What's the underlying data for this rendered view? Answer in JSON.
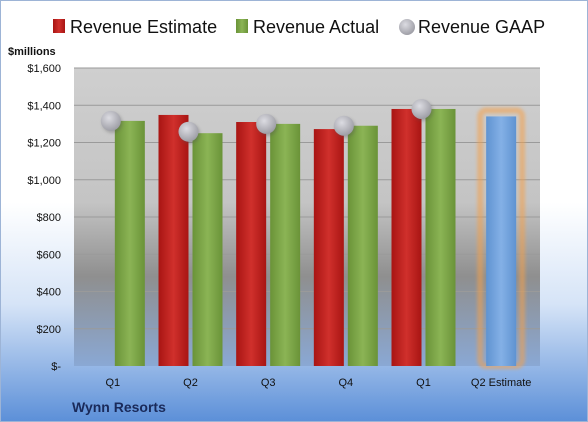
{
  "chart_data": {
    "type": "bar",
    "title": "",
    "company": "Wynn Resorts",
    "y_unit": "$millions",
    "categories": [
      "Q1",
      "Q2",
      "Q3",
      "Q4",
      "Q1",
      "Q2 Estimate"
    ],
    "ylim": [
      0,
      1600
    ],
    "y_ticks": [
      0,
      200,
      400,
      600,
      800,
      1000,
      1200,
      1400,
      1600
    ],
    "y_tick_labels": [
      "$-",
      "$200",
      "$400",
      "$600",
      "$800",
      "$1,000",
      "$1,200",
      "$1,400",
      "$1,600"
    ],
    "grid": true,
    "legend_position": "top",
    "series": [
      {
        "name": "Revenue Estimate",
        "type": "bar",
        "color": "#c0211f",
        "values": [
          null,
          1348,
          1310,
          1272,
          1380,
          null
        ]
      },
      {
        "name": "Revenue Actual",
        "type": "bar",
        "color": "#79a345",
        "values": [
          1316,
          1250,
          1300,
          1290,
          1380,
          null
        ]
      },
      {
        "name": "Revenue GAAP",
        "type": "marker",
        "color": "#a8a8ae",
        "values": [
          1316,
          1258,
          1300,
          1290,
          1380,
          null
        ]
      }
    ],
    "estimate": {
      "category": "Q2 Estimate",
      "value": 1340,
      "color": "#6fa0d8",
      "glow_color": "#f5a04a"
    }
  }
}
